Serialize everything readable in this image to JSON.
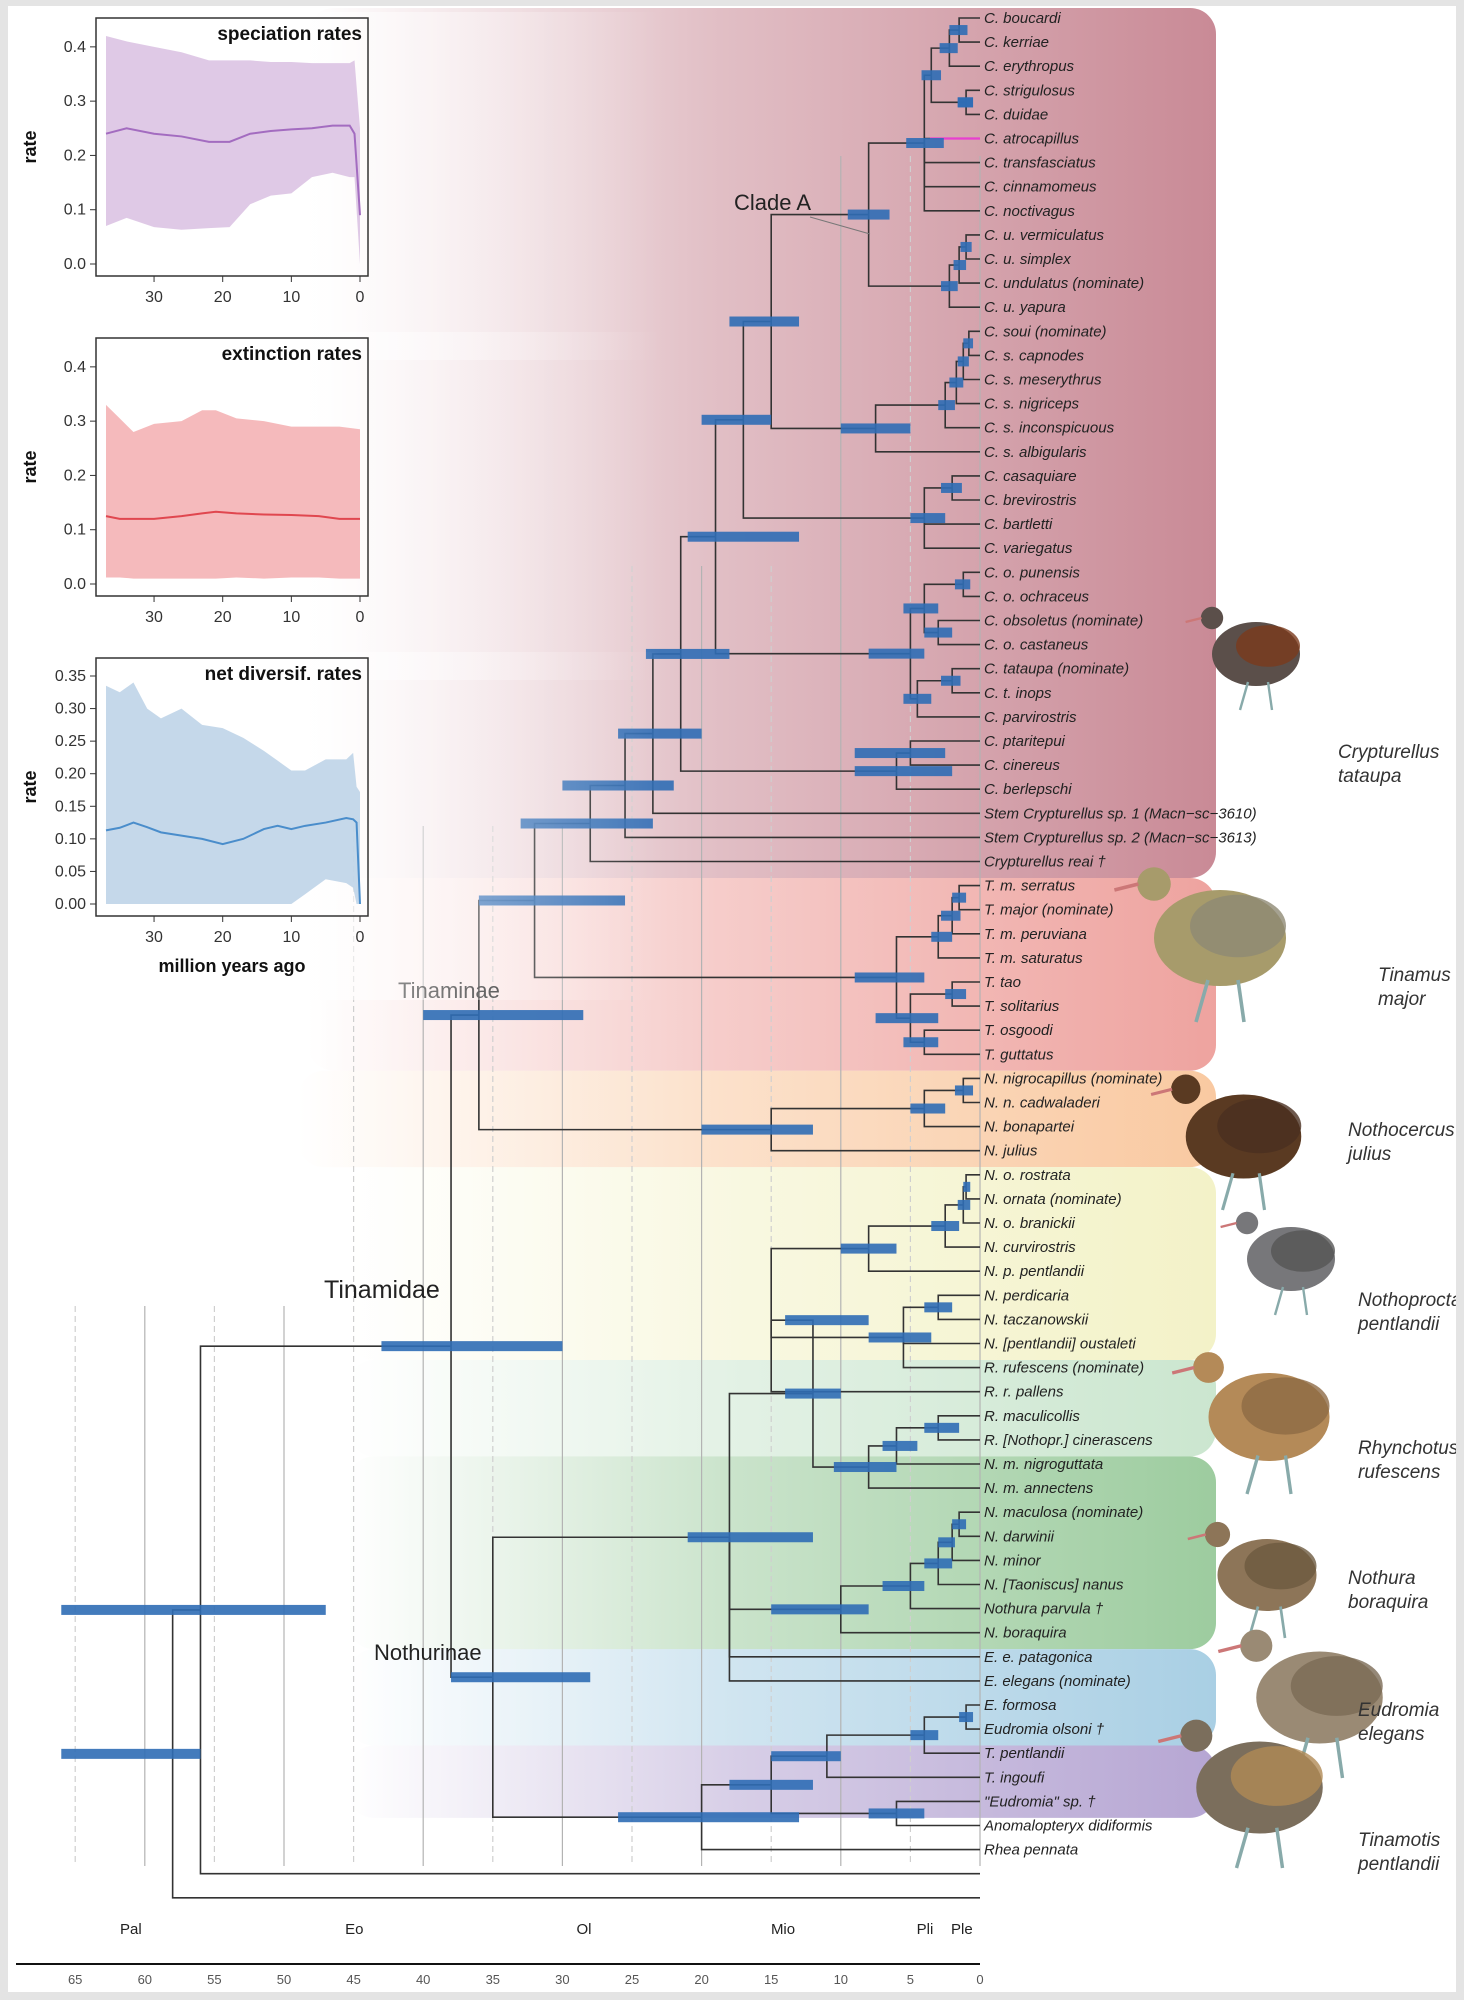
{
  "figure": {
    "clade_labels": [
      "Clade A",
      "Tinaminae",
      "Tinamidae",
      "Nothurinae"
    ],
    "group_colors": {
      "crypturellus": "#c98a96",
      "tinamus": "#eea39f",
      "nothocercus": "#f9c9a1",
      "nothoprocta": "#f3f2c8",
      "rhynchotus": "#cbe6cf",
      "nothura": "#9dcc9f",
      "eudromia": "#a9cfe4",
      "tinamotis": "#b6a6d3"
    },
    "accent_colors": {
      "hpd_bar": "#2f6db5",
      "highlight_branch": "#e83fd0",
      "branch": "#333333"
    },
    "taxa": [
      "C. boucardi",
      "C. kerriae",
      "C. erythropus",
      "C. strigulosus",
      "C. duidae",
      "C. atrocapillus",
      "C. transfasciatus",
      "C. cinnamomeus",
      "C. noctivagus",
      "C. u. vermiculatus",
      "C. u. simplex",
      "C. undulatus (nominate)",
      "C. u. yapura",
      "C. soui (nominate)",
      "C. s. capnodes",
      "C. s. meserythrus",
      "C. s. nigriceps",
      "C. s. inconspicuous",
      "C. s. albigularis",
      "C. casaquiare",
      "C. brevirostris",
      "C. bartletti",
      "C. variegatus",
      "C. o. punensis",
      "C. o. ochraceus",
      "C. obsoletus (nominate)",
      "C. o. castaneus",
      "C. tataupa (nominate)",
      "C. t. inops",
      "C. parvirostris",
      "C. ptaritepui",
      "C. cinereus",
      "C. berlepschi",
      "Stem Crypturellus sp. 1 (Macn−sc−3610)",
      "Stem Crypturellus sp. 2 (Macn−sc−3613)",
      "Crypturellus reai †",
      "T. m. serratus",
      "T. major (nominate)",
      "T. m. peruviana",
      "T. m. saturatus",
      "T. tao",
      "T. solitarius",
      "T. osgoodi",
      "T. guttatus",
      "N. nigrocapillus (nominate)",
      "N. n. cadwaladeri",
      "N. bonapartei",
      "N. julius",
      "N. o. rostrata",
      "N. ornata (nominate)",
      "N. o. branickii",
      "N. curvirostris",
      "N. p. pentlandii",
      "N. perdicaria",
      "N. taczanowskii",
      "N. [pentlandii] oustaleti",
      "R. rufescens (nominate)",
      "R. r. pallens",
      "R. maculicollis",
      "R. [Nothopr.] cinerascens",
      "N. m. nigroguttata",
      "N. m. annectens",
      "N. maculosa (nominate)",
      "N. darwinii",
      "N. minor",
      "N. [Taoniscus] nanus",
      "Nothura parvula †",
      "N. boraquira",
      "E. e. patagonica",
      "E. elegans (nominate)",
      "E. formosa",
      "Eudromia olsoni †",
      "T. pentlandii",
      "T. ingoufi",
      "\"Eudromia\" sp. †",
      "Anomalopteryx didiformis",
      "Rhea pennata"
    ],
    "bird_labels": [
      [
        "Crypturellus",
        "tataupa"
      ],
      [
        "Tinamus",
        "major"
      ],
      [
        "Nothocercus",
        "julius"
      ],
      [
        "Nothoprocta",
        "pentlandii"
      ],
      [
        "Rhynchotus",
        "rufescens"
      ],
      [
        "Nothura",
        "boraquira"
      ],
      [
        "Eudromia",
        "elegans"
      ],
      [
        "Tinamotis",
        "pentlandii"
      ]
    ],
    "timescale": {
      "epochs": [
        {
          "label": "",
          "from": 66,
          "to": 70,
          "color": "#9bd146"
        },
        {
          "label": "Pal",
          "from": 56,
          "to": 66,
          "color": "#f5a66a"
        },
        {
          "label": "Eo",
          "from": 33.9,
          "to": 56,
          "color": "#fab577"
        },
        {
          "label": "Ol",
          "from": 23,
          "to": 33.9,
          "color": "#fec587"
        },
        {
          "label": "Mio",
          "from": 5.3,
          "to": 23,
          "color": "#ffff00"
        },
        {
          "label": "Pli",
          "from": 2.6,
          "to": 5.3,
          "color": "#fffea8"
        },
        {
          "label": "Ple",
          "from": 0,
          "to": 2.6,
          "color": "#fff2b0"
        }
      ],
      "ticks": [
        "65",
        "60",
        "55",
        "50",
        "45",
        "40",
        "35",
        "30",
        "25",
        "20",
        "15",
        "10",
        "5",
        "0"
      ]
    }
  },
  "chart_data": [
    {
      "type": "area",
      "title": "speciation rates",
      "xlabel": "",
      "ylabel": "rate",
      "xlim": [
        37,
        0
      ],
      "ylim": [
        0,
        0.42
      ],
      "xticks": [
        "30",
        "20",
        "10",
        "0"
      ],
      "yticks": [
        "0.0",
        "0.1",
        "0.2",
        "0.3",
        "0.4"
      ],
      "color": "#a36cc0",
      "fill": "#dcc3e3",
      "x": [
        37,
        34,
        30,
        26,
        22,
        19,
        16,
        13,
        10,
        7,
        4,
        1.5,
        0.8,
        0
      ],
      "mean": [
        0.24,
        0.25,
        0.24,
        0.235,
        0.225,
        0.225,
        0.24,
        0.245,
        0.248,
        0.25,
        0.255,
        0.255,
        0.24,
        0.09
      ],
      "upper": [
        0.42,
        0.41,
        0.4,
        0.39,
        0.375,
        0.375,
        0.375,
        0.372,
        0.372,
        0.37,
        0.37,
        0.37,
        0.375,
        0.25
      ],
      "lower": [
        0.07,
        0.085,
        0.068,
        0.063,
        0.066,
        0.068,
        0.11,
        0.126,
        0.13,
        0.16,
        0.168,
        0.16,
        0.16,
        0.0
      ]
    },
    {
      "type": "area",
      "title": "extinction rates",
      "xlabel": "",
      "ylabel": "rate",
      "xlim": [
        37,
        0
      ],
      "ylim": [
        0,
        0.42
      ],
      "xticks": [
        "30",
        "20",
        "10",
        "0"
      ],
      "yticks": [
        "0.0",
        "0.1",
        "0.2",
        "0.3",
        "0.4"
      ],
      "color": "#e0474f",
      "fill": "#f4b3b5",
      "x": [
        37,
        35,
        33,
        30,
        26,
        23,
        21,
        18,
        14,
        10,
        6,
        3,
        0
      ],
      "mean": [
        0.125,
        0.12,
        0.12,
        0.12,
        0.125,
        0.13,
        0.133,
        0.13,
        0.128,
        0.127,
        0.125,
        0.12,
        0.12
      ],
      "upper": [
        0.33,
        0.305,
        0.28,
        0.295,
        0.3,
        0.32,
        0.32,
        0.305,
        0.3,
        0.29,
        0.29,
        0.29,
        0.285
      ],
      "lower": [
        0.012,
        0.012,
        0.01,
        0.01,
        0.01,
        0.01,
        0.01,
        0.012,
        0.01,
        0.012,
        0.012,
        0.01,
        0.01
      ]
    },
    {
      "type": "area",
      "title": "net diversif. rates",
      "xlabel": "million years ago",
      "ylabel": "rate",
      "xlim": [
        37,
        0
      ],
      "ylim": [
        0,
        0.35
      ],
      "xticks": [
        "30",
        "20",
        "10",
        "0"
      ],
      "yticks": [
        "0.00",
        "0.05",
        "0.10",
        "0.15",
        "0.20",
        "0.25",
        "0.30",
        "0.35"
      ],
      "color": "#4a8dcb",
      "fill": "#bfd4e8",
      "x": [
        37,
        35,
        33,
        31,
        29,
        26,
        23,
        20,
        17,
        14,
        12,
        10,
        8,
        5,
        2,
        1,
        0.5,
        0
      ],
      "mean": [
        0.113,
        0.117,
        0.125,
        0.118,
        0.11,
        0.105,
        0.1,
        0.092,
        0.1,
        0.115,
        0.12,
        0.115,
        0.12,
        0.125,
        0.132,
        0.13,
        0.125,
        0.0
      ],
      "upper": [
        0.335,
        0.325,
        0.34,
        0.3,
        0.285,
        0.3,
        0.275,
        0.27,
        0.255,
        0.235,
        0.22,
        0.205,
        0.205,
        0.222,
        0.222,
        0.232,
        0.18,
        0.172
      ],
      "lower": [
        0,
        0,
        0,
        0,
        0,
        0,
        0,
        0,
        0,
        0,
        0,
        0,
        0.015,
        0.038,
        0.032,
        0.025,
        0.0,
        0.0
      ]
    }
  ]
}
